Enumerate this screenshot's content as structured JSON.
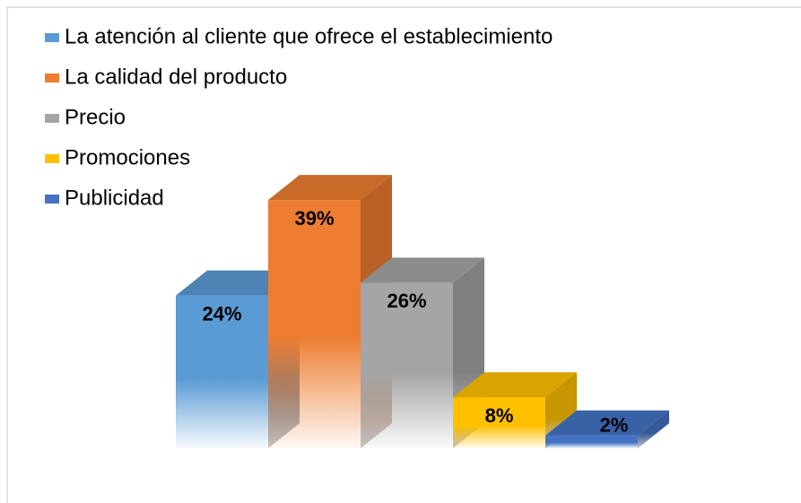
{
  "chart_data": {
    "type": "bar3d",
    "series": [
      {
        "name": "La atención al cliente que ofrece el establecimiento",
        "color": "#5b9bd5",
        "values": [
          24
        ],
        "value_labels": [
          "24%"
        ]
      },
      {
        "name": "La calidad del producto",
        "color": "#ed7d31",
        "values": [
          39
        ],
        "value_labels": [
          "39%"
        ]
      },
      {
        "name": "Precio",
        "color": "#a5a5a5",
        "values": [
          26
        ],
        "value_labels": [
          "26%"
        ]
      },
      {
        "name": "Promociones",
        "color": "#ffc000",
        "values": [
          8
        ],
        "value_labels": [
          "8%"
        ]
      },
      {
        "name": "Publicidad",
        "color": "#4472c4",
        "values": [
          2
        ],
        "value_labels": [
          "2%"
        ]
      }
    ],
    "legend": "top-left"
  }
}
